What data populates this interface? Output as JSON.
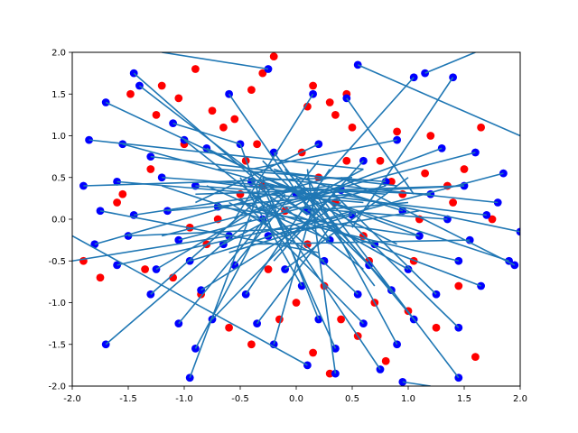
{
  "chart_data": {
    "type": "scatter",
    "title": "",
    "xlabel": "",
    "ylabel": "",
    "xlim": [
      -2.0,
      2.0
    ],
    "ylim": [
      -2.0,
      2.0
    ],
    "grid": false,
    "x_ticks": [
      "-2.0",
      "-1.5",
      "-1.0",
      "-0.5",
      "0.0",
      "0.5",
      "1.0",
      "1.5",
      "2.0"
    ],
    "y_ticks": [
      "-2.0",
      "-1.5",
      "-1.0",
      "-0.5",
      "0.0",
      "0.5",
      "1.0",
      "1.5",
      "2.0"
    ],
    "series": [
      {
        "marker": "circle",
        "color": "#ff0000",
        "x": [
          -1.48,
          -1.2,
          -1.05,
          -0.9,
          -0.75,
          -0.55,
          -0.4,
          -0.3,
          -0.2,
          0.1,
          0.15,
          0.3,
          0.45,
          -0.65,
          -0.35,
          0.05,
          0.5,
          0.75,
          0.2,
          -0.5,
          1.2,
          0.9,
          -1.3,
          0.35,
          -0.1,
          1.35,
          1.5,
          -1.6,
          -1.9,
          1.65,
          -0.8,
          0.6,
          0.95,
          1.1,
          -0.25,
          0.25,
          -0.95,
          0.7,
          1.45,
          -1.1,
          0.4,
          -0.6,
          1.0,
          -0.4,
          0.55,
          0.15,
          -0.85,
          1.25,
          -1.35,
          0.8,
          0.3,
          -0.15,
          1.6,
          -1.75,
          0.65,
          0.0,
          -0.45,
          1.05,
          -1.0,
          0.85,
          1.4,
          -0.7,
          0.45,
          -1.55,
          0.1,
          1.15,
          -0.3,
          0.35,
          1.75,
          -1.25
        ],
        "y": [
          1.5,
          1.6,
          1.45,
          1.8,
          1.3,
          1.2,
          1.55,
          1.75,
          1.95,
          1.35,
          1.6,
          1.4,
          1.5,
          1.1,
          0.9,
          0.8,
          1.1,
          0.7,
          0.5,
          0.3,
          1.0,
          1.05,
          0.6,
          0.2,
          0.1,
          0.4,
          0.6,
          0.2,
          -0.5,
          1.1,
          -0.3,
          -0.2,
          0.3,
          0.0,
          -0.6,
          -0.8,
          -0.1,
          -1.0,
          -0.8,
          -0.7,
          -1.2,
          -1.3,
          -1.1,
          -1.5,
          -1.4,
          -1.6,
          -0.9,
          -1.3,
          -0.6,
          -1.7,
          -1.85,
          -1.2,
          -1.65,
          -0.7,
          -0.5,
          -1.0,
          0.7,
          -0.5,
          0.9,
          0.45,
          0.2,
          0.0,
          0.7,
          0.3,
          -0.3,
          0.55,
          0.4,
          1.25,
          0.0,
          1.25
        ]
      },
      {
        "marker": "circle",
        "color": "#0000ff",
        "x": [
          -1.45,
          -1.4,
          -1.1,
          -0.6,
          0.15,
          0.45,
          1.05,
          1.4,
          -1.7,
          -1.85,
          -1.55,
          -1.3,
          -1.0,
          -0.8,
          -0.5,
          -0.2,
          0.2,
          0.6,
          0.9,
          1.3,
          1.6,
          1.85,
          -1.9,
          -1.6,
          -1.2,
          -0.9,
          -0.4,
          0.0,
          0.4,
          0.8,
          1.2,
          1.5,
          1.8,
          -1.75,
          -1.45,
          -1.15,
          -0.7,
          -0.3,
          0.1,
          0.5,
          0.95,
          1.35,
          1.7,
          2.0,
          -1.8,
          -1.5,
          -1.05,
          -0.65,
          -0.25,
          0.3,
          0.7,
          1.1,
          1.55,
          1.9,
          -1.6,
          -1.25,
          -0.95,
          -0.55,
          -0.1,
          0.25,
          0.65,
          1.0,
          1.45,
          1.95,
          -1.3,
          -0.85,
          -0.45,
          0.05,
          0.55,
          0.85,
          1.25,
          1.65,
          -1.05,
          -0.75,
          -0.35,
          0.2,
          0.6,
          1.05,
          1.45,
          -0.9,
          -0.2,
          0.35,
          0.9,
          -1.7,
          -0.95,
          0.35,
          0.75,
          1.45,
          -0.6,
          0.95,
          1.15,
          -0.25,
          0.1,
          0.55
        ],
        "y": [
          1.75,
          1.6,
          1.15,
          1.5,
          1.5,
          1.45,
          1.7,
          1.7,
          1.4,
          0.95,
          0.9,
          0.75,
          0.95,
          0.85,
          0.9,
          0.8,
          0.9,
          0.7,
          0.95,
          0.85,
          0.8,
          0.55,
          0.4,
          0.45,
          0.5,
          0.4,
          0.45,
          0.3,
          0.35,
          0.45,
          0.3,
          0.4,
          0.2,
          0.1,
          0.05,
          0.1,
          0.15,
          0.0,
          0.1,
          0.05,
          0.1,
          0.0,
          0.05,
          -0.15,
          -0.3,
          -0.2,
          -0.25,
          -0.3,
          -0.2,
          -0.25,
          -0.3,
          -0.2,
          -0.25,
          -0.5,
          -0.55,
          -0.6,
          -0.5,
          -0.55,
          -0.6,
          -0.5,
          -0.55,
          -0.6,
          -0.5,
          -0.55,
          -0.9,
          -0.85,
          -0.9,
          -0.8,
          -0.9,
          -0.85,
          -0.9,
          -0.8,
          -1.25,
          -1.2,
          -1.25,
          -1.2,
          -1.25,
          -1.2,
          -1.3,
          -1.55,
          -1.5,
          -1.55,
          -1.5,
          -1.5,
          -1.9,
          -1.85,
          -1.8,
          -1.9,
          -0.2,
          -1.95,
          1.75,
          1.8,
          -1.75,
          1.85
        ]
      }
    ],
    "connectors": {
      "color": "#1f77b4",
      "segments": [
        [
          -1.45,
          1.75,
          -0.3,
          0.4
        ],
        [
          -1.4,
          1.6,
          0.1,
          0.05
        ],
        [
          -1.1,
          1.15,
          -0.5,
          0.9
        ],
        [
          -0.6,
          1.5,
          0.3,
          -0.25
        ],
        [
          0.15,
          1.5,
          -0.55,
          0.0
        ],
        [
          0.45,
          1.45,
          1.05,
          0.3
        ],
        [
          1.05,
          1.7,
          0.25,
          0.5
        ],
        [
          1.4,
          1.7,
          0.5,
          -0.1
        ],
        [
          -1.7,
          1.4,
          0.2,
          0.2
        ],
        [
          -1.85,
          0.95,
          0.6,
          0.6
        ],
        [
          -1.55,
          0.9,
          0.1,
          0.3
        ],
        [
          -1.3,
          0.75,
          0.9,
          0.4
        ],
        [
          -1.0,
          0.95,
          -0.1,
          0.0
        ],
        [
          -0.8,
          0.85,
          0.9,
          -0.3
        ],
        [
          -0.5,
          0.9,
          -0.2,
          -0.2
        ],
        [
          -0.2,
          0.8,
          0.7,
          -0.8
        ],
        [
          0.2,
          0.9,
          -0.9,
          0.2
        ],
        [
          0.6,
          0.7,
          -0.2,
          -0.5
        ],
        [
          0.9,
          0.95,
          -0.4,
          0.6
        ],
        [
          1.3,
          0.85,
          0.1,
          0.25
        ],
        [
          1.6,
          0.8,
          -0.4,
          0.1
        ],
        [
          1.85,
          0.55,
          0.3,
          0.0
        ],
        [
          -1.9,
          0.4,
          0.5,
          0.5
        ],
        [
          -1.6,
          0.45,
          0.6,
          0.2
        ],
        [
          -1.2,
          0.5,
          0.8,
          0.3
        ],
        [
          -0.9,
          0.4,
          -0.4,
          0.35
        ],
        [
          -0.4,
          0.45,
          0.6,
          -0.6
        ],
        [
          0.0,
          0.3,
          1.5,
          0.4
        ],
        [
          0.4,
          0.35,
          -1.2,
          -0.2
        ],
        [
          0.8,
          0.45,
          -0.7,
          0.6
        ],
        [
          1.2,
          0.3,
          -0.5,
          0.4
        ],
        [
          1.5,
          0.4,
          -0.9,
          0.3
        ],
        [
          1.8,
          0.2,
          -0.3,
          0.5
        ],
        [
          -1.75,
          0.1,
          0.2,
          -0.4
        ],
        [
          -1.45,
          0.05,
          0.3,
          0.4
        ],
        [
          -1.15,
          0.1,
          0.5,
          0.3
        ],
        [
          -0.7,
          0.15,
          1.1,
          -0.2
        ],
        [
          -0.3,
          0.0,
          -1.2,
          0.4
        ],
        [
          0.1,
          0.1,
          1.0,
          0.2
        ],
        [
          0.5,
          0.05,
          -0.6,
          -0.4
        ],
        [
          0.95,
          0.1,
          -0.2,
          0.6
        ],
        [
          1.35,
          0.0,
          -0.1,
          0.15
        ],
        [
          1.7,
          0.05,
          -0.8,
          0.45
        ],
        [
          2.0,
          -0.15,
          0.4,
          0.3
        ],
        [
          -1.8,
          -0.3,
          0.3,
          0.5
        ],
        [
          -1.5,
          -0.2,
          0.2,
          -0.1
        ],
        [
          -1.05,
          -0.25,
          0.8,
          0.4
        ],
        [
          -0.65,
          -0.3,
          0.6,
          0.6
        ],
        [
          -0.25,
          -0.2,
          1.1,
          0.1
        ],
        [
          0.3,
          -0.25,
          -0.8,
          0.4
        ],
        [
          0.7,
          -0.3,
          -0.5,
          0.2
        ],
        [
          1.1,
          -0.2,
          -0.3,
          0.5
        ],
        [
          1.55,
          -0.25,
          -0.4,
          -0.3
        ],
        [
          1.9,
          -0.5,
          0.1,
          0.3
        ],
        [
          -1.6,
          -0.55,
          0.2,
          0.0
        ],
        [
          -1.25,
          -0.6,
          0.0,
          0.4
        ],
        [
          -0.95,
          -0.5,
          0.5,
          0.1
        ],
        [
          -0.55,
          -0.55,
          0.2,
          0.7
        ],
        [
          -0.1,
          -0.6,
          1.0,
          0.5
        ],
        [
          0.25,
          -0.5,
          -0.6,
          0.2
        ],
        [
          0.65,
          -0.55,
          -0.3,
          0.7
        ],
        [
          1.0,
          -0.6,
          -0.2,
          0.3
        ],
        [
          1.45,
          -0.5,
          0.2,
          -0.1
        ],
        [
          1.95,
          -0.55,
          0.4,
          0.5
        ],
        [
          -1.3,
          -0.9,
          -0.2,
          0.4
        ],
        [
          -0.85,
          -0.85,
          0.4,
          0.2
        ],
        [
          -0.45,
          -0.9,
          0.3,
          0.6
        ],
        [
          0.05,
          -0.8,
          -0.5,
          0.5
        ],
        [
          0.55,
          -0.9,
          -0.4,
          0.3
        ],
        [
          0.85,
          -0.85,
          -0.1,
          0.6
        ],
        [
          1.25,
          -0.9,
          0.3,
          0.35
        ],
        [
          1.65,
          -0.8,
          -0.3,
          0.2
        ],
        [
          -1.05,
          -1.25,
          -0.1,
          0.3
        ],
        [
          -0.75,
          -1.2,
          0.4,
          0.4
        ],
        [
          -0.35,
          -1.25,
          0.3,
          -0.1
        ],
        [
          0.2,
          -1.2,
          -0.3,
          0.5
        ],
        [
          0.6,
          -1.25,
          -0.5,
          0.25
        ],
        [
          1.05,
          -1.2,
          0.0,
          0.5
        ],
        [
          1.45,
          -1.3,
          0.3,
          0.2
        ],
        [
          -0.9,
          -1.55,
          -0.2,
          0.2
        ],
        [
          -0.2,
          -1.5,
          0.2,
          0.4
        ],
        [
          0.35,
          -1.55,
          -0.3,
          0.4
        ],
        [
          0.9,
          -1.5,
          0.1,
          0.5
        ],
        [
          -1.7,
          -1.5,
          -0.4,
          0.0
        ],
        [
          -0.95,
          -1.9,
          -0.3,
          0.45
        ],
        [
          0.35,
          -1.85,
          0.1,
          0.6
        ],
        [
          0.75,
          -1.8,
          -0.2,
          0.1
        ],
        [
          1.45,
          -1.9,
          0.2,
          0.3
        ],
        [
          -0.6,
          -0.2,
          -2.0,
          -0.5
        ],
        [
          0.95,
          -1.95,
          1.2,
          -2.0
        ],
        [
          1.15,
          1.75,
          1.6,
          2.0
        ],
        [
          -0.25,
          1.8,
          -1.2,
          2.0
        ],
        [
          0.1,
          -1.75,
          -2.0,
          -0.2
        ],
        [
          0.55,
          1.85,
          2.0,
          1.0
        ]
      ]
    }
  }
}
